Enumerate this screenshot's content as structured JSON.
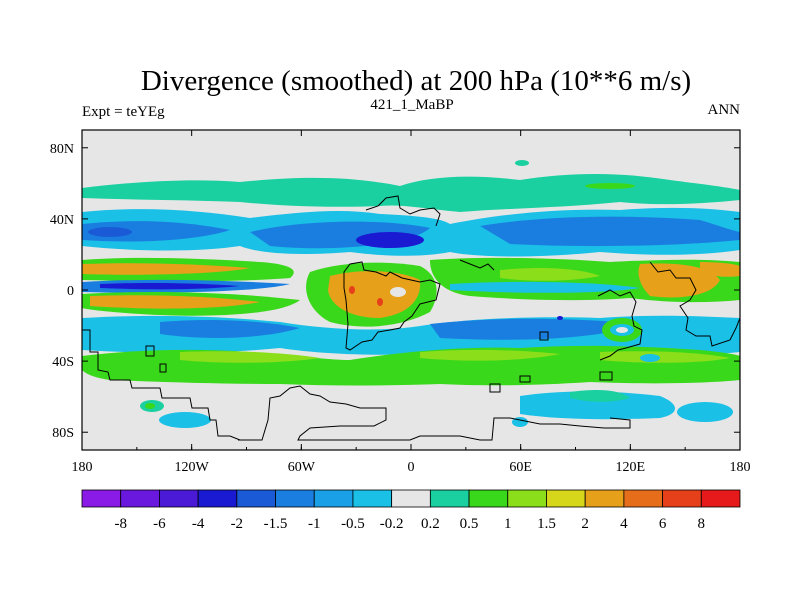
{
  "title": "Divergence (smoothed) at 200 hPa (10**6 m/s)",
  "left_label": "Expt = teYEg",
  "center_label": "421_1_MaBP",
  "right_label": "ANN",
  "chart_data": {
    "type": "heatmap",
    "title": "Divergence (smoothed) at 200 hPa (10**6 m/s)",
    "xlabel": "",
    "ylabel": "",
    "x_ticks": [
      "180",
      "120W",
      "60W",
      "0",
      "60E",
      "120E",
      "180"
    ],
    "y_ticks": [
      "80N",
      "40N",
      "0",
      "40S",
      "80S"
    ],
    "x_range": [
      -180,
      180
    ],
    "y_range": [
      -90,
      90
    ],
    "colorbar": {
      "labels": [
        "-8",
        "-6",
        "-4",
        "-2",
        "-1.5",
        "-1",
        "-0.5",
        "-0.2",
        "0.2",
        "0.5",
        "1",
        "1.5",
        "2",
        "4",
        "6",
        "8"
      ],
      "colors": [
        "#8a1ae6",
        "#6a18de",
        "#4a1ad6",
        "#1a1ad2",
        "#1a5ad6",
        "#1a7ee0",
        "#1aa0e6",
        "#1ac0e6",
        "#e6e6e6",
        "#1ad0a0",
        "#3ad81a",
        "#8ade1a",
        "#d6d61a",
        "#e6a01a",
        "#e66e1a",
        "#e6401a",
        "#e61a1a"
      ]
    },
    "background_color": "#e6e6e6"
  }
}
